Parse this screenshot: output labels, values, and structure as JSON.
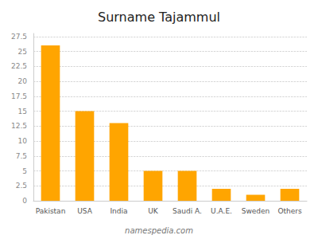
{
  "chart_data": {
    "type": "bar",
    "title": "Surname Tajammul",
    "categories": [
      "Pakistan",
      "USA",
      "India",
      "UK",
      "Saudi A.",
      "U.A.E.",
      "Sweden",
      "Others"
    ],
    "values": [
      26,
      15,
      13,
      5,
      5,
      2,
      1,
      2
    ],
    "color": "#FFA500",
    "ylim": [
      0,
      28
    ],
    "yticks": [
      0,
      2.5,
      5,
      7.5,
      10,
      12.5,
      15,
      17.5,
      20,
      22.5,
      25,
      27.5
    ],
    "grid": true,
    "annotation": "namespedia.com"
  }
}
